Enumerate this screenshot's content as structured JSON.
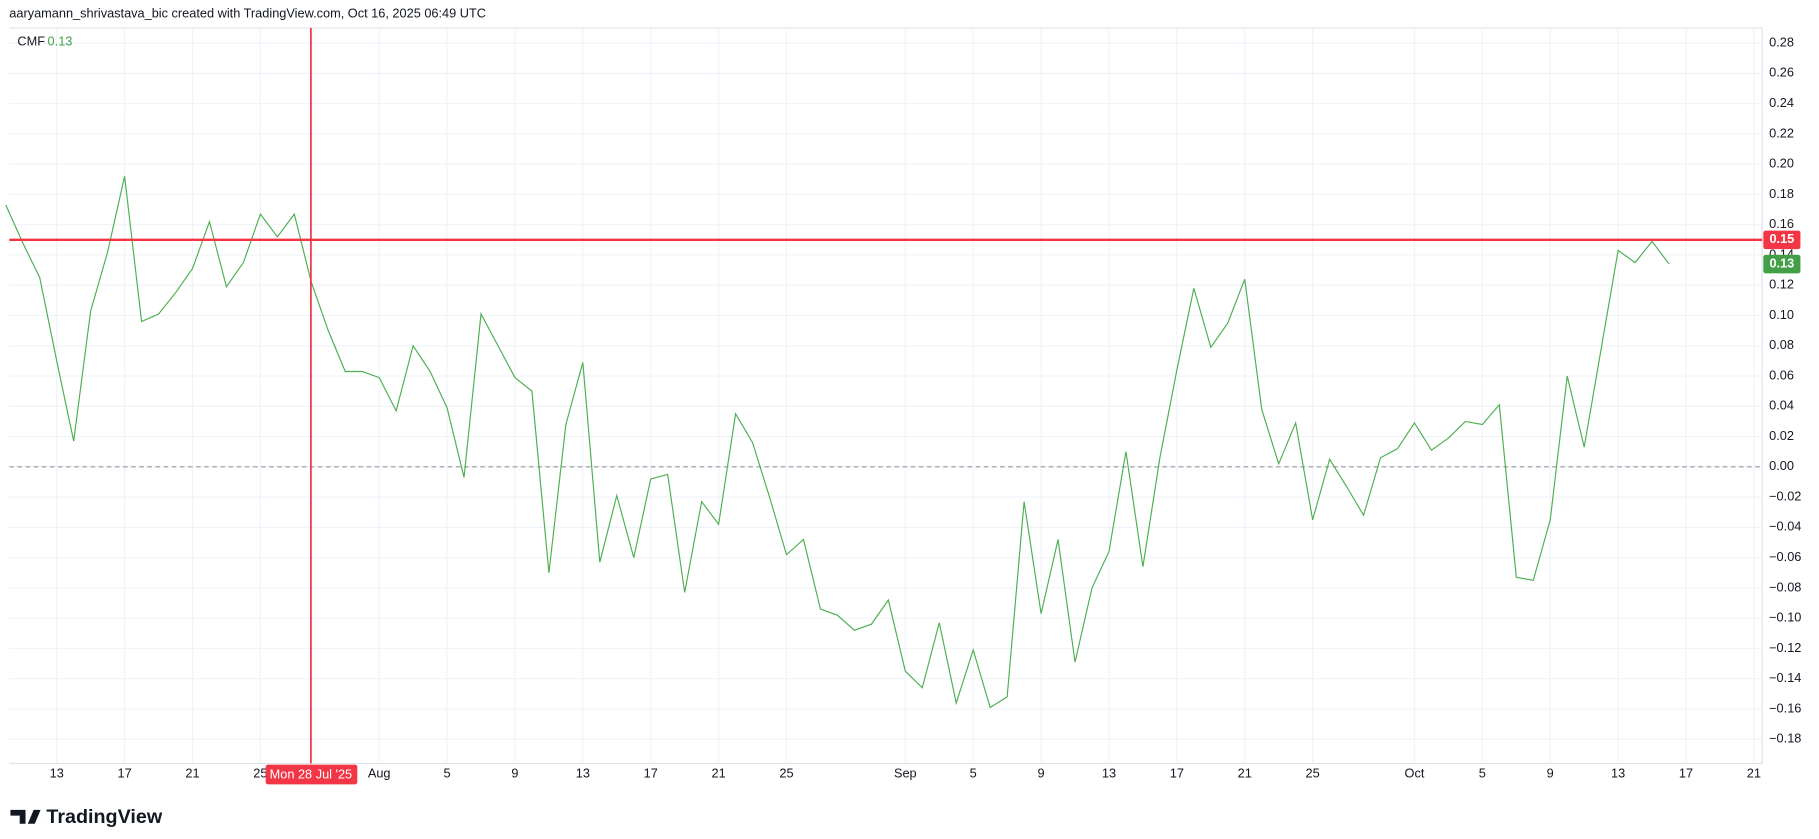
{
  "chart_data": {
    "type": "line",
    "title": "aaryamann_shrivastava_bic created with TradingView.com, Oct 16, 2025 06:49 UTC",
    "footer": "TradingView",
    "categories": [
      null,
      null,
      null,
      "13",
      null,
      null,
      null,
      "17",
      null,
      null,
      null,
      "21",
      null,
      null,
      null,
      "25",
      null,
      null,
      null,
      null,
      null,
      null,
      "Aug",
      null,
      null,
      null,
      "5",
      null,
      null,
      null,
      "9",
      null,
      null,
      null,
      "13",
      null,
      null,
      null,
      "17",
      null,
      null,
      null,
      "21",
      null,
      null,
      null,
      "25",
      null,
      null,
      null,
      null,
      null,
      null,
      "Sep",
      null,
      null,
      null,
      "5",
      null,
      null,
      null,
      "9",
      null,
      null,
      null,
      "13",
      null,
      null,
      null,
      "17",
      null,
      null,
      null,
      "21",
      null,
      null,
      null,
      "25",
      null,
      null,
      null,
      null,
      null,
      "Oct",
      null,
      null,
      null,
      "5",
      null,
      null,
      null,
      "9",
      null,
      null,
      null,
      "13",
      null,
      null,
      null,
      "17",
      null,
      null,
      null,
      "21"
    ],
    "series": [
      {
        "name": "CMF",
        "color": "#4caf50",
        "last_label": "0.13",
        "label_color": "#43a047",
        "values": [
          0.173,
          0.148,
          0.125,
          0.07,
          0.017,
          0.103,
          0.142,
          0.192,
          0.096,
          0.101,
          0.115,
          0.131,
          0.162,
          0.119,
          0.135,
          0.167,
          0.152,
          0.167,
          0.122,
          0.09,
          0.063,
          0.063,
          0.059,
          0.037,
          0.08,
          0.063,
          0.039,
          -0.007,
          0.101,
          0.08,
          0.059,
          0.05,
          -0.07,
          0.028,
          0.069,
          -0.063,
          -0.019,
          -0.06,
          -0.008,
          -0.005,
          -0.083,
          -0.023,
          -0.038,
          0.035,
          0.016,
          -0.02,
          -0.058,
          -0.048,
          -0.094,
          -0.098,
          -0.108,
          -0.104,
          -0.088,
          -0.135,
          -0.146,
          -0.103,
          -0.156,
          -0.121,
          -0.159,
          -0.152,
          -0.023,
          -0.097,
          -0.048,
          -0.129,
          -0.08,
          -0.056,
          0.01,
          -0.066,
          0.006,
          0.064,
          0.118,
          0.079,
          0.095,
          0.124,
          0.038,
          0.002,
          0.029,
          -0.035,
          0.005,
          -0.013,
          -0.032,
          0.006,
          0.012,
          0.029,
          0.011,
          0.019,
          0.03,
          0.028,
          0.041,
          -0.073,
          -0.075,
          -0.035,
          0.06,
          0.013,
          0.078,
          0.143,
          0.135,
          0.149,
          0.134,
          null,
          null,
          null,
          null,
          null
        ]
      }
    ],
    "hline": {
      "value": 0.15,
      "label": "0.15",
      "color": "#f23645"
    },
    "crosshair": {
      "label": "Mon 28 Jul '25",
      "color": "#f23645"
    },
    "zero_line": true,
    "grid": true,
    "ylim": [
      -0.196,
      0.29
    ],
    "yticks": [
      0.28,
      0.26,
      0.24,
      0.22,
      {
        "value": 0.2,
        "label": "0.20"
      },
      0.18,
      0.16,
      0.14,
      0.12,
      {
        "value": 0.1,
        "label": "0.10"
      },
      0.08,
      0.06,
      0.04,
      0.02,
      {
        "value": 0,
        "label": "0.00"
      },
      {
        "value": -0.02,
        "label": "−0.02"
      },
      {
        "value": -0.04,
        "label": "−0.04"
      },
      {
        "value": -0.06,
        "label": "−0.06"
      },
      {
        "value": -0.08,
        "label": "−0.08"
      },
      {
        "value": -0.1,
        "label": "−0.10"
      },
      {
        "value": -0.12,
        "label": "−0.12"
      },
      {
        "value": -0.14,
        "label": "−0.14"
      },
      {
        "value": -0.16,
        "label": "−0.16"
      },
      {
        "value": -0.18,
        "label": "−0.18"
      }
    ]
  }
}
